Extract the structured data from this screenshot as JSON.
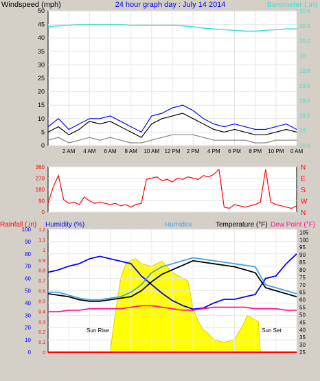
{
  "header": {
    "title": "24 hour graph day : July 14 2014",
    "left_axis_title": "Windspeed (mph)",
    "right_axis_title": "Barometer (.in)"
  },
  "colors": {
    "background": "#d4d0c8",
    "plot_bg": "#ffffff",
    "wind_gust": "#000000",
    "wind_avg": "#0000ff",
    "wind_low": "#808080",
    "barometer": "#40e0d0",
    "wind_dir": "#ff0000",
    "temperature": "#000000",
    "humidity": "#0000ff",
    "humidex": "#4aa0e0",
    "dew_point": "#ff1493",
    "solar": "#ffff00",
    "rain": "#ff0000",
    "title": "#0000ff",
    "dir_labels": "#ff0000"
  },
  "time_ticks": [
    "2 AM",
    "4 AM",
    "6 AM",
    "8 AM",
    "10 AM",
    "12 PM",
    "2 PM",
    "4 PM",
    "6 PM",
    "8 PM",
    "10 PM",
    "0 AM"
  ],
  "chart_data": [
    {
      "type": "line",
      "name": "wind-barometer",
      "x_hours": [
        0,
        1,
        2,
        3,
        4,
        5,
        6,
        7,
        8,
        9,
        10,
        11,
        12,
        13,
        14,
        15,
        16,
        17,
        18,
        19,
        20,
        21,
        22,
        23,
        24
      ],
      "series": [
        {
          "name": "Windspeed (mph)",
          "axis": "left",
          "values": [
            5,
            7,
            4,
            6,
            9,
            8,
            9,
            7,
            5,
            3,
            8,
            10,
            11,
            12,
            10,
            8,
            6,
            5,
            6,
            5,
            4,
            4,
            5,
            6,
            5
          ]
        },
        {
          "name": "Gust",
          "axis": "left",
          "values": [
            7,
            10,
            6,
            8,
            10,
            10,
            11,
            9,
            7,
            5,
            11,
            12,
            14,
            15,
            13,
            10,
            8,
            7,
            8,
            7,
            6,
            6,
            7,
            8,
            6
          ]
        },
        {
          "name": "Low",
          "axis": "left",
          "values": [
            2,
            3,
            1,
            2,
            3,
            2,
            3,
            2,
            1,
            1,
            2,
            3,
            4,
            4,
            4,
            3,
            2,
            2,
            2,
            2,
            1,
            1,
            2,
            2,
            2
          ]
        },
        {
          "name": "Barometer (.in)",
          "axis": "right",
          "values": [
            30.39,
            30.4,
            30.41,
            30.42,
            30.42,
            30.42,
            30.42,
            30.42,
            30.41,
            30.41,
            30.41,
            30.41,
            30.41,
            30.4,
            30.39,
            30.37,
            30.36,
            30.35,
            30.34,
            30.33,
            30.33,
            30.34,
            30.35,
            30.36,
            30.36
          ]
        }
      ],
      "y_left_ticks": [
        0,
        5,
        10,
        15,
        20,
        25,
        30,
        35,
        40,
        45,
        50
      ],
      "y_left_lim": [
        0,
        50
      ],
      "y_right_ticks": [
        "28.8",
        "29",
        "29.2",
        "29.4",
        "29.6",
        "29.8",
        "30",
        "30.2",
        "30.4",
        "30.6"
      ],
      "y_right_lim": [
        28.8,
        30.6
      ]
    },
    {
      "type": "scatter",
      "name": "wind-direction",
      "x_hours": [
        0,
        0.5,
        1,
        1.5,
        2,
        2.5,
        3,
        3.5,
        4,
        4.5,
        5,
        5.5,
        6,
        6.5,
        7,
        7.5,
        8,
        8.5,
        9,
        9.5,
        10,
        10.5,
        11,
        11.5,
        12,
        12.5,
        13,
        13.5,
        14,
        14.5,
        15,
        15.5,
        16,
        16.5,
        17,
        17.5,
        18,
        18.5,
        19,
        19.5,
        20,
        20.5,
        21,
        21.5,
        22,
        22.5,
        23,
        23.5,
        24
      ],
      "values": [
        70,
        200,
        290,
        100,
        70,
        80,
        60,
        120,
        90,
        70,
        80,
        70,
        60,
        70,
        50,
        60,
        40,
        60,
        70,
        260,
        270,
        280,
        250,
        260,
        240,
        270,
        260,
        280,
        270,
        260,
        290,
        280,
        300,
        340,
        40,
        30,
        60,
        50,
        40,
        50,
        60,
        80,
        340,
        80,
        60,
        50,
        40,
        30,
        50
      ],
      "y_ticks": [
        0,
        90,
        180,
        270,
        360
      ],
      "y_lim": [
        0,
        360
      ],
      "direction_labels": [
        "N",
        "W",
        "S",
        "E",
        "N"
      ]
    },
    {
      "type": "line",
      "name": "temperature-humidity",
      "legend": [
        "Rainfall (.in)",
        "Humidity (%)",
        "Humidex",
        "Temperature (°F)",
        "Dew Point (°F)"
      ],
      "x_hours": [
        0,
        1,
        2,
        3,
        4,
        5,
        6,
        7,
        8,
        9,
        10,
        11,
        12,
        13,
        14,
        15,
        16,
        17,
        18,
        19,
        20,
        21,
        22,
        23,
        24
      ],
      "series": [
        {
          "name": "Humidity (%)",
          "axis": "left",
          "values": [
            65,
            67,
            70,
            72,
            76,
            78,
            76,
            74,
            72,
            62,
            55,
            48,
            42,
            38,
            35,
            36,
            40,
            43,
            43,
            45,
            47,
            60,
            62,
            72,
            80
          ]
        },
        {
          "name": "Humidex",
          "axis": "right",
          "values": [
            65,
            65,
            63,
            61,
            60,
            60,
            61,
            62,
            65,
            70,
            78,
            82,
            84,
            86,
            88,
            87,
            86,
            85,
            84,
            83,
            82,
            70,
            68,
            66,
            64
          ]
        },
        {
          "name": "Temperature (°F)",
          "axis": "right",
          "values": [
            64,
            63,
            62,
            60,
            59,
            59,
            60,
            61,
            62,
            66,
            72,
            77,
            80,
            83,
            86,
            85,
            84,
            83,
            82,
            80,
            78,
            68,
            66,
            64,
            62
          ]
        },
        {
          "name": "Dew Point (°F)",
          "axis": "right",
          "values": [
            52,
            52,
            53,
            53,
            54,
            54,
            54,
            54,
            55,
            56,
            56,
            55,
            54,
            53,
            53,
            54,
            55,
            55,
            55,
            55,
            54,
            54,
            54,
            53,
            53
          ]
        },
        {
          "name": "Rainfall (.in)",
          "axis": "rain",
          "values": [
            0,
            0,
            0,
            0,
            0,
            0,
            0,
            0,
            0,
            0,
            0,
            0,
            0,
            0,
            0,
            0,
            0,
            0,
            0,
            0,
            0,
            0,
            0,
            0,
            0
          ]
        }
      ],
      "solar_area": {
        "x_hours": [
          6,
          6.3,
          7,
          7.5,
          8,
          8.5,
          9,
          10,
          11,
          12,
          13,
          13.5,
          14,
          14.5,
          15,
          15.5,
          16,
          17,
          18,
          19,
          19.2,
          20.3,
          20.5
        ],
        "values": [
          0,
          20,
          60,
          72,
          75,
          76,
          72,
          70,
          74,
          65,
          60,
          58,
          35,
          25,
          18,
          15,
          10,
          8,
          10,
          25,
          30,
          25,
          0
        ]
      },
      "annotations": [
        "Sun Rise",
        "Sun Set"
      ],
      "y_humidity_ticks": [
        0,
        10,
        20,
        30,
        40,
        50,
        60,
        70,
        80,
        90,
        100
      ],
      "y_humidity_lim": [
        0,
        100
      ],
      "y_rain_ticks": [
        "0",
        "0.1",
        "0.2",
        "0.3",
        "0.4",
        "0.5",
        "0.6",
        "0.7",
        "0.8",
        "0.9",
        "1",
        "1.1",
        "1.2"
      ],
      "y_rain_lim": [
        0,
        1.2
      ],
      "y_temp_ticks": [
        25,
        30,
        35,
        40,
        45,
        50,
        55,
        60,
        65,
        70,
        75,
        80,
        85,
        90,
        95,
        100,
        105
      ],
      "y_temp_lim": [
        25,
        107
      ]
    }
  ]
}
